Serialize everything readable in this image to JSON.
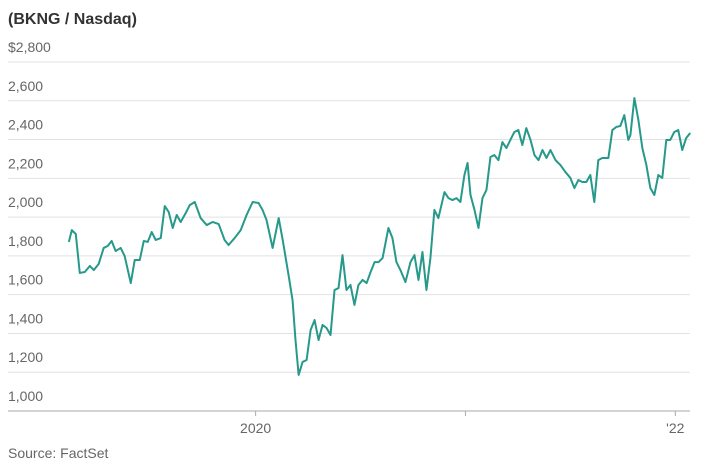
{
  "chart_data": {
    "type": "line",
    "title": "(BKNG / Nasdaq)",
    "source": "Source: FactSet",
    "x": [
      2019.11,
      2019.124,
      2019.143,
      2019.162,
      2019.186,
      2019.21,
      2019.229,
      2019.252,
      2019.276,
      2019.295,
      2019.314,
      2019.333,
      2019.357,
      2019.376,
      2019.405,
      2019.424,
      2019.448,
      2019.467,
      2019.486,
      2019.505,
      2019.524,
      2019.548,
      2019.567,
      2019.586,
      2019.605,
      2019.624,
      2019.643,
      2019.667,
      2019.686,
      2019.71,
      2019.738,
      2019.767,
      2019.795,
      2019.824,
      2019.852,
      2019.871,
      2019.9,
      2019.929,
      2019.957,
      2019.986,
      2020.014,
      2020.033,
      2020.052,
      2020.081,
      2020.11,
      2020.129,
      2020.157,
      2020.176,
      2020.19,
      2020.205,
      2020.224,
      2020.243,
      2020.262,
      2020.281,
      2020.3,
      2020.319,
      2020.338,
      2020.357,
      2020.376,
      2020.395,
      2020.414,
      2020.433,
      2020.452,
      2020.471,
      2020.49,
      2020.51,
      2020.529,
      2020.548,
      2020.567,
      2020.586,
      2020.605,
      2020.633,
      2020.652,
      2020.671,
      2020.69,
      2020.714,
      2020.738,
      2020.757,
      2020.776,
      2020.795,
      2020.814,
      2020.833,
      2020.852,
      2020.871,
      2020.9,
      2020.919,
      2020.938,
      2020.957,
      2020.976,
      2020.995,
      2021.01,
      2021.024,
      2021.043,
      2021.062,
      2021.081,
      2021.1,
      2021.119,
      2021.138,
      2021.157,
      2021.176,
      2021.195,
      2021.214,
      2021.233,
      2021.252,
      2021.271,
      2021.29,
      2021.31,
      2021.329,
      2021.348,
      2021.367,
      2021.386,
      2021.405,
      2021.429,
      2021.452,
      2021.476,
      2021.5,
      2021.519,
      2021.538,
      2021.557,
      2021.576,
      2021.595,
      2021.614,
      2021.633,
      2021.652,
      2021.681,
      2021.7,
      2021.719,
      2021.738,
      2021.757,
      2021.776,
      2021.786,
      2021.805,
      2021.824,
      2021.843,
      2021.862,
      2021.881,
      2021.9,
      2021.919,
      2021.938,
      2021.957,
      2021.976,
      2021.995,
      2022.014,
      2022.033,
      2022.052,
      2022.071
    ],
    "values": [
      1872,
      1933,
      1913,
      1712,
      1717,
      1748,
      1727,
      1758,
      1841,
      1851,
      1877,
      1825,
      1841,
      1799,
      1660,
      1779,
      1779,
      1877,
      1872,
      1923,
      1882,
      1892,
      2057,
      2026,
      1944,
      2011,
      1975,
      2021,
      2062,
      2078,
      1995,
      1959,
      1975,
      1964,
      1882,
      1856,
      1892,
      1933,
      2011,
      2078,
      2073,
      2037,
      1985,
      1841,
      1995,
      1882,
      1701,
      1572,
      1366,
      1186,
      1253,
      1263,
      1418,
      1469,
      1366,
      1444,
      1428,
      1392,
      1624,
      1634,
      1804,
      1624,
      1650,
      1547,
      1650,
      1676,
      1660,
      1717,
      1768,
      1768,
      1789,
      1944,
      1892,
      1768,
      1727,
      1665,
      1768,
      1804,
      1676,
      1820,
      1624,
      1789,
      2037,
      1995,
      2129,
      2098,
      2088,
      2098,
      2078,
      2217,
      2279,
      2114,
      2037,
      1944,
      2098,
      2140,
      2310,
      2320,
      2294,
      2387,
      2356,
      2398,
      2439,
      2449,
      2372,
      2459,
      2398,
      2320,
      2294,
      2346,
      2305,
      2346,
      2294,
      2269,
      2233,
      2202,
      2150,
      2191,
      2181,
      2181,
      2217,
      2078,
      2294,
      2305,
      2305,
      2449,
      2465,
      2470,
      2526,
      2398,
      2423,
      2614,
      2501,
      2356,
      2269,
      2150,
      2114,
      2217,
      2202,
      2398,
      2398,
      2439,
      2449,
      2346,
      2408,
      2434
    ],
    "color": "#26998a",
    "xlim": [
      2018.82,
      2022.07
    ],
    "xticks": [
      2020,
      {
        "value": 2021,
        "label": null
      },
      {
        "value": 2022,
        "label": "'22"
      }
    ],
    "ylim": [
      1000,
      2800
    ],
    "yticks": [
      {
        "value": 1000,
        "label": "1,000"
      },
      {
        "value": 1200,
        "label": "1,200"
      },
      {
        "value": 1400,
        "label": "1,400"
      },
      {
        "value": 1600,
        "label": "1,600"
      },
      {
        "value": 1800,
        "label": "1,800"
      },
      {
        "value": 2000,
        "label": "2,000"
      },
      {
        "value": 2200,
        "label": "2,200"
      },
      {
        "value": 2400,
        "label": "2,400"
      },
      {
        "value": 2600,
        "label": "2,600"
      },
      {
        "value": 2800,
        "label": "$2,800"
      }
    ],
    "grid": true
  }
}
